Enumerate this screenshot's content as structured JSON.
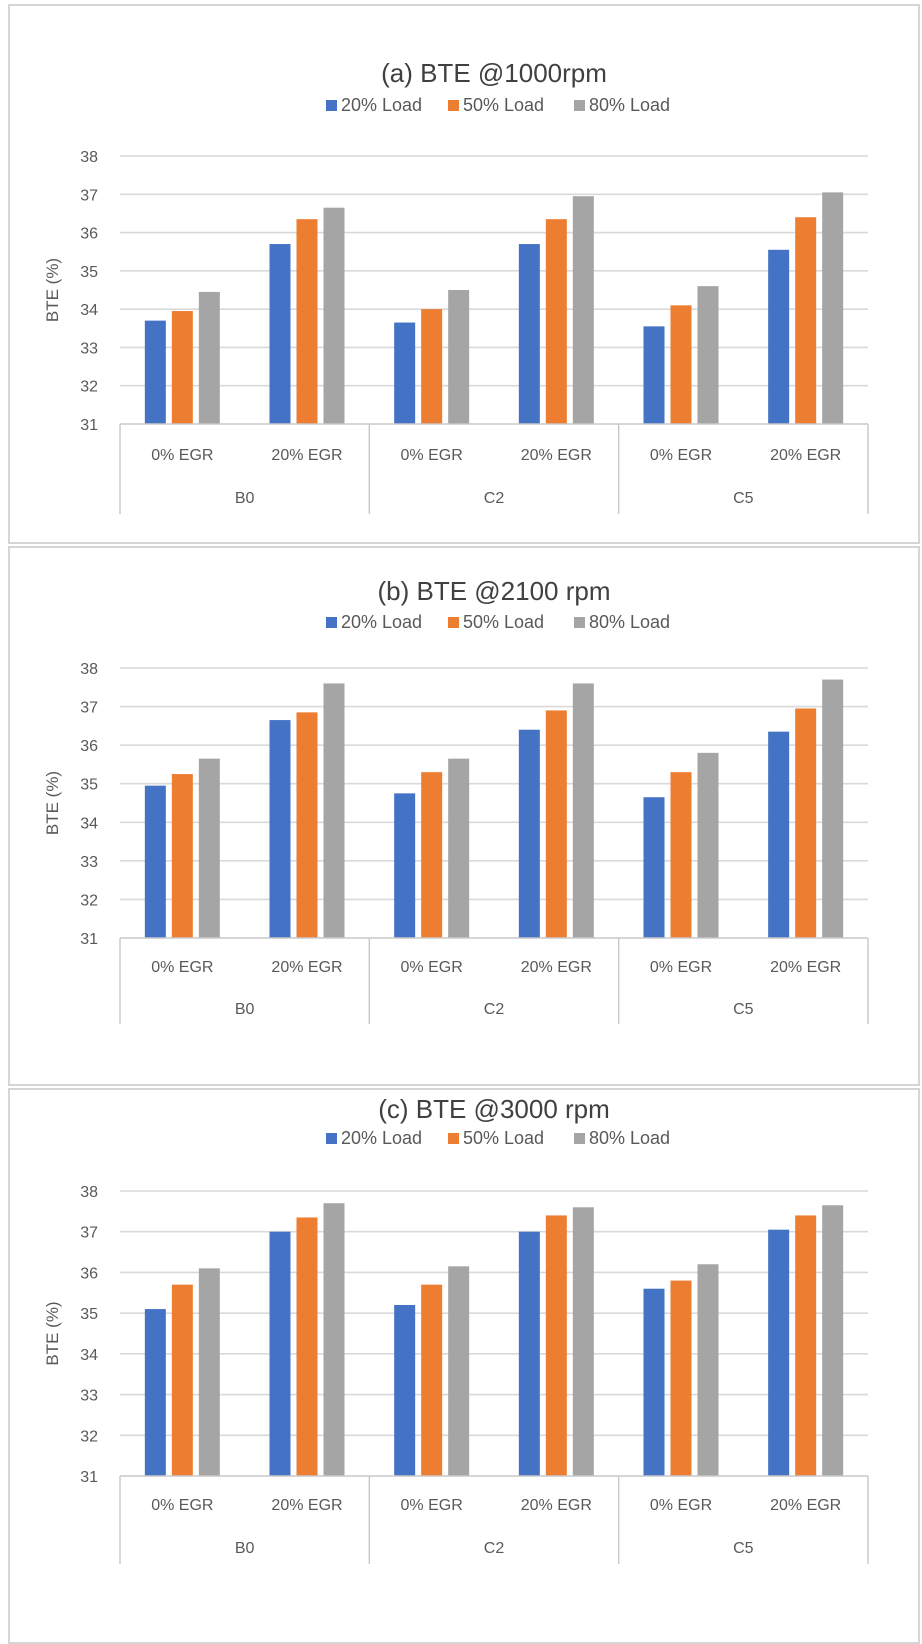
{
  "colors": {
    "s1": "#4472c4",
    "s2": "#ed7d31",
    "s3": "#a5a5a5"
  },
  "chart_data": [
    {
      "type": "bar",
      "title": "(a) BTE @1000rpm",
      "ylabel": "BTE (%)",
      "xlabel": "",
      "ylim": [
        31,
        38
      ],
      "yticks": [
        "31",
        "32",
        "33",
        "34",
        "35",
        "36",
        "37",
        "38"
      ],
      "categories": [
        "0% EGR",
        "20% EGR",
        "0% EGR",
        "20% EGR",
        "0% EGR",
        "20% EGR"
      ],
      "groups": [
        "B0",
        "C2",
        "C5"
      ],
      "legend_position": "top",
      "grid": true,
      "series": [
        {
          "name": "20% Load",
          "values": [
            33.7,
            35.7,
            33.65,
            35.7,
            33.55,
            35.55
          ]
        },
        {
          "name": "50% Load",
          "values": [
            33.95,
            36.35,
            34.0,
            36.35,
            34.1,
            36.4
          ]
        },
        {
          "name": "80% Load",
          "values": [
            34.45,
            36.65,
            34.5,
            36.95,
            34.6,
            37.05
          ]
        }
      ]
    },
    {
      "type": "bar",
      "title": "(b) BTE @2100 rpm",
      "ylabel": "BTE (%)",
      "xlabel": "",
      "ylim": [
        31,
        38
      ],
      "yticks": [
        "31",
        "32",
        "33",
        "34",
        "35",
        "36",
        "37",
        "38"
      ],
      "categories": [
        "0% EGR",
        "20% EGR",
        "0% EGR",
        "20% EGR",
        "0% EGR",
        "20% EGR"
      ],
      "groups": [
        "B0",
        "C2",
        "C5"
      ],
      "legend_position": "top",
      "grid": true,
      "series": [
        {
          "name": "20% Load",
          "values": [
            34.95,
            36.65,
            34.75,
            36.4,
            34.65,
            36.35
          ]
        },
        {
          "name": "50% Load",
          "values": [
            35.25,
            36.85,
            35.3,
            36.9,
            35.3,
            36.95
          ]
        },
        {
          "name": "80% Load",
          "values": [
            35.65,
            37.6,
            35.65,
            37.6,
            35.8,
            37.7
          ]
        }
      ]
    },
    {
      "type": "bar",
      "title": "(c) BTE @3000 rpm",
      "ylabel": "BTE (%)",
      "xlabel": "",
      "ylim": [
        31,
        38
      ],
      "yticks": [
        "31",
        "32",
        "33",
        "34",
        "35",
        "36",
        "37",
        "38"
      ],
      "categories": [
        "0% EGR",
        "20% EGR",
        "0% EGR",
        "20% EGR",
        "0% EGR",
        "20% EGR"
      ],
      "groups": [
        "B0",
        "C2",
        "C5"
      ],
      "legend_position": "top",
      "grid": true,
      "series": [
        {
          "name": "20% Load",
          "values": [
            35.1,
            37.0,
            35.2,
            37.0,
            35.6,
            37.05
          ]
        },
        {
          "name": "50% Load",
          "values": [
            35.7,
            37.35,
            35.7,
            37.4,
            35.8,
            37.4
          ]
        },
        {
          "name": "80% Load",
          "values": [
            36.1,
            37.7,
            36.15,
            37.6,
            36.2,
            37.65
          ]
        }
      ]
    }
  ]
}
